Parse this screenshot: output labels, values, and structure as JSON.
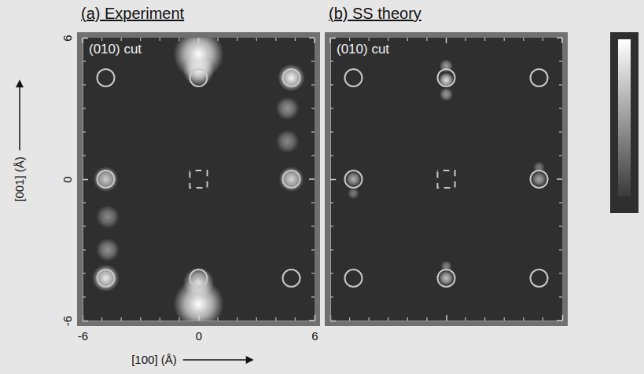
{
  "chart_data": [
    {
      "type": "scatter",
      "title": "(a) Experiment",
      "annotation": "(010) cut",
      "x_label": "[100] (Å)",
      "y_label": "[001] (Å)",
      "xlim": [
        -6,
        6
      ],
      "ylim": [
        -6,
        6
      ],
      "xticks": [
        -6,
        0,
        6
      ],
      "yticks": [
        -6,
        0,
        6
      ],
      "minor_xticks": [
        -5,
        -4,
        -3,
        -2,
        -1,
        1,
        2,
        3,
        4,
        5
      ],
      "minor_yticks": [
        -5,
        -4,
        -3,
        -2,
        -1,
        1,
        2,
        3,
        4,
        5
      ],
      "marker": "circle",
      "color": "#c8c8c8",
      "x": [
        -4.8,
        0,
        4.8,
        -4.8,
        4.8,
        -4.8,
        0,
        4.8
      ],
      "y": [
        4.3,
        4.3,
        4.3,
        0,
        0,
        -4.2,
        -4.2,
        -4.2
      ],
      "center": {
        "x": 0,
        "y": 0
      },
      "color_range": [
        0,
        1
      ],
      "spots": {
        "x": [
          0,
          0,
          0,
          0,
          4.8,
          4.6,
          4.8,
          4.6,
          -4.8,
          -4.7,
          -4.8,
          -4.7
        ],
        "y": [
          5.3,
          4.6,
          -5.3,
          -4.4,
          4.3,
          3.0,
          0,
          1.6,
          0,
          -1.6,
          -4.2,
          -3.0
        ],
        "intensity": [
          1.0,
          0.9,
          1.0,
          0.85,
          0.95,
          0.45,
          0.8,
          0.4,
          0.75,
          0.4,
          0.9,
          0.45
        ],
        "radius": [
          1.3,
          0.8,
          1.3,
          0.8,
          0.7,
          0.6,
          0.65,
          0.6,
          0.65,
          0.6,
          0.7,
          0.6
        ]
      }
    },
    {
      "type": "scatter",
      "title": "(b) SS theory",
      "annotation": "(010) cut",
      "xlim": [
        -6,
        6
      ],
      "ylim": [
        -6,
        6
      ],
      "xticks": [
        -6,
        0,
        6
      ],
      "yticks": [
        -6,
        0,
        6
      ],
      "minor_xticks": [
        -5,
        -4,
        -3,
        -2,
        -1,
        1,
        2,
        3,
        4,
        5
      ],
      "minor_yticks": [
        -5,
        -4,
        -3,
        -2,
        -1,
        1,
        2,
        3,
        4,
        5
      ],
      "tick_labels": false,
      "marker": "circle",
      "color": "#c8c8c8",
      "x": [
        -4.8,
        0,
        4.8,
        -4.8,
        4.8,
        -4.8,
        0,
        4.8
      ],
      "y": [
        4.3,
        4.3,
        4.3,
        0,
        0,
        -4.2,
        -4.2,
        -4.2
      ],
      "center": {
        "x": 0,
        "y": 0
      },
      "color_range": [
        0,
        1
      ],
      "colorbar": true,
      "spots": {
        "x": [
          0,
          0,
          0,
          0,
          0,
          -4.8,
          -4.8,
          4.8,
          4.8
        ],
        "y": [
          4.2,
          4.8,
          3.6,
          -4.2,
          -3.7,
          0,
          -0.6,
          0,
          0.5
        ],
        "intensity": [
          0.85,
          0.5,
          0.5,
          0.7,
          0.4,
          0.6,
          0.35,
          0.55,
          0.35
        ],
        "radius": [
          0.4,
          0.35,
          0.35,
          0.4,
          0.3,
          0.4,
          0.3,
          0.4,
          0.3
        ]
      }
    }
  ]
}
